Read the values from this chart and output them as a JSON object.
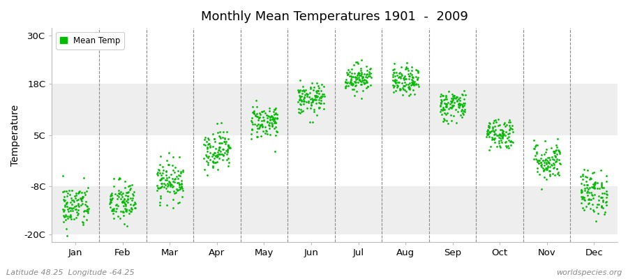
{
  "title": "Monthly Mean Temperatures 1901  -  2009",
  "ylabel": "Temperature",
  "bottom_left_text": "Latitude 48.25  Longitude -64.25",
  "bottom_right_text": "worldspecies.org",
  "yticks": [
    -20,
    -8,
    5,
    18,
    30
  ],
  "ytick_labels": [
    "-20C",
    "-8C",
    "5C",
    "18C",
    "30C"
  ],
  "ylim": [
    -22,
    32
  ],
  "months": [
    "Jan",
    "Feb",
    "Mar",
    "Apr",
    "May",
    "Jun",
    "Jul",
    "Aug",
    "Sep",
    "Oct",
    "Nov",
    "Dec"
  ],
  "dot_color": "#00bb00",
  "bg_color": "#ffffff",
  "plot_bg_color": "#ffffff",
  "band_color_light": "#eeeeee",
  "band_color_white": "#f8f8f8",
  "legend_label": "Mean Temp",
  "n_years": 109,
  "monthly_means": [
    -13.0,
    -12.0,
    -6.5,
    1.5,
    8.5,
    14.0,
    19.5,
    18.5,
    12.5,
    5.5,
    -1.5,
    -9.5
  ],
  "monthly_stds": [
    2.8,
    2.8,
    2.5,
    2.5,
    2.2,
    2.0,
    1.8,
    1.8,
    2.0,
    2.0,
    2.5,
    2.8
  ],
  "seed": 42
}
